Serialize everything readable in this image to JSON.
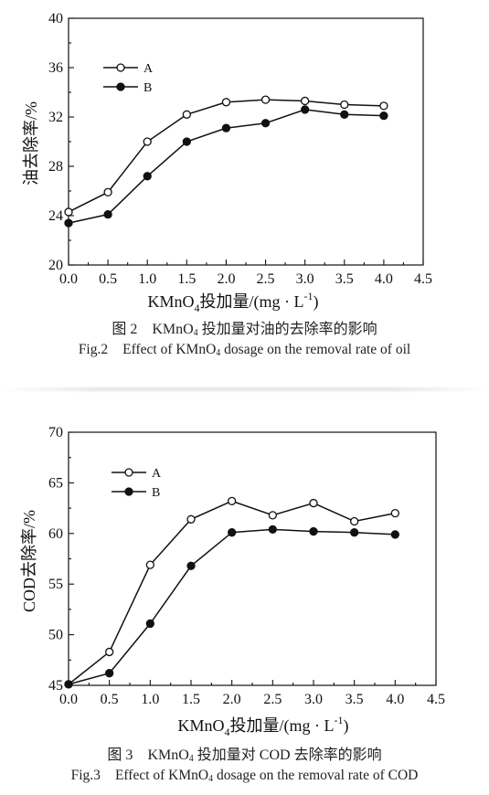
{
  "chart_data": [
    {
      "type": "line",
      "x": [
        0.0,
        0.5,
        1.0,
        1.5,
        2.0,
        2.5,
        3.0,
        3.5,
        4.0
      ],
      "series": [
        {
          "name": "A",
          "marker": "open-circle",
          "values": [
            24.3,
            25.9,
            30.0,
            32.2,
            33.2,
            33.4,
            33.3,
            33.0,
            32.9
          ]
        },
        {
          "name": "B",
          "marker": "filled-circle",
          "values": [
            23.4,
            24.1,
            27.2,
            30.0,
            31.1,
            31.5,
            32.6,
            32.2,
            32.1
          ]
        }
      ],
      "xlim": [
        0,
        4.5
      ],
      "ylim": [
        20,
        40
      ],
      "xticks": [
        "0.0",
        "0.5",
        "1.0",
        "1.5",
        "2.0",
        "2.5",
        "3.0",
        "3.5",
        "4.0",
        "4.5"
      ],
      "yticks": [
        "20",
        "24",
        "28",
        "32",
        "36",
        "40"
      ],
      "ylabel": "油去除率/%",
      "xlabel_main": "KMnO",
      "xlabel_sub": "4",
      "xlabel_rest": "投加量/(mg · L",
      "xlabel_sup": "-1",
      "xlabel_end": ")",
      "legend_position": "top-left",
      "grid": false,
      "line_color": "#111111",
      "caption_cn": {
        "num": "图 2",
        "pre": "KMnO",
        "sub": "4",
        "post": " 投加量对油的去除率的影响"
      },
      "caption_en": {
        "num": "Fig.2",
        "pre": "Effect of KMnO",
        "sub": "4",
        "post": " dosage on the removal rate of oil"
      }
    },
    {
      "type": "line",
      "x": [
        0.0,
        0.5,
        1.0,
        1.5,
        2.0,
        2.5,
        3.0,
        3.5,
        4.0
      ],
      "series": [
        {
          "name": "A",
          "marker": "open-circle",
          "values": [
            45.1,
            48.3,
            56.9,
            61.4,
            63.2,
            61.8,
            63.0,
            61.2,
            62.0
          ]
        },
        {
          "name": "B",
          "marker": "filled-circle",
          "values": [
            45.1,
            46.2,
            51.1,
            56.8,
            60.1,
            60.4,
            60.2,
            60.1,
            59.9
          ]
        }
      ],
      "xlim": [
        0,
        4.5
      ],
      "ylim": [
        45,
        70
      ],
      "xticks": [
        "0.0",
        "0.5",
        "1.0",
        "1.5",
        "2.0",
        "2.5",
        "3.0",
        "3.5",
        "4.0",
        "4.5"
      ],
      "yticks": [
        "45",
        "50",
        "55",
        "60",
        "65",
        "70"
      ],
      "ylabel": "COD去除率/%",
      "xlabel_main": "KMnO",
      "xlabel_sub": "4",
      "xlabel_rest": "投加量/(mg · L",
      "xlabel_sup": "-1",
      "xlabel_end": ")",
      "legend_position": "top-left",
      "grid": false,
      "line_color": "#111111",
      "caption_cn": {
        "num": "图 3",
        "pre": "KMnO",
        "sub": "4",
        "post": " 投加量对 COD 去除率的影响"
      },
      "caption_en": {
        "num": "Fig.3",
        "pre": "Effect of KMnO",
        "sub": "4",
        "post": " dosage on the removal rate of COD"
      }
    }
  ]
}
